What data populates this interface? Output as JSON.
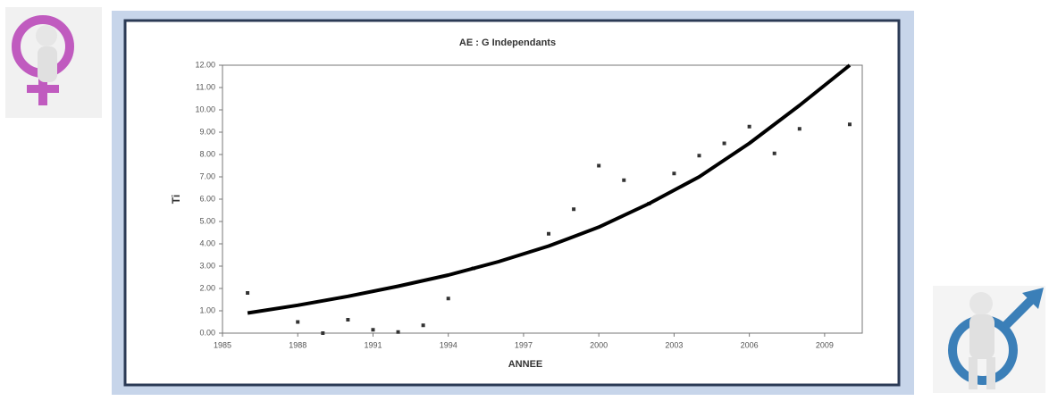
{
  "chart_data": {
    "type": "scatter",
    "title": "AE : G Independants",
    "xlabel": "ANNEE",
    "ylabel": "Ti",
    "xlim": [
      1985,
      2010.5
    ],
    "ylim": [
      0,
      12
    ],
    "xticks": [
      1985,
      1988,
      1991,
      1994,
      1997,
      2000,
      2003,
      2006,
      2009
    ],
    "yticks": [
      {
        "value": 0,
        "label": "0.00"
      },
      {
        "value": 1,
        "label": "1.00"
      },
      {
        "value": 2,
        "label": "2.00"
      },
      {
        "value": 3,
        "label": "3.00"
      },
      {
        "value": 4,
        "label": "4.00"
      },
      {
        "value": 5,
        "label": "5.00"
      },
      {
        "value": 6,
        "label": "6.00"
      },
      {
        "value": 7,
        "label": "7.00"
      },
      {
        "value": 8,
        "label": "8.00"
      },
      {
        "value": 9,
        "label": "9.00"
      },
      {
        "value": 10,
        "label": "10.00"
      },
      {
        "value": 11,
        "label": "11.00"
      },
      {
        "value": 12,
        "label": "12.00"
      }
    ],
    "series": [
      {
        "mode": "markers",
        "color": "#333333",
        "x": [
          1986,
          1988,
          1989,
          1990,
          1991,
          1992,
          1993,
          1994,
          1995,
          1998,
          1999,
          2000,
          2001,
          2002,
          2003,
          2004,
          2005,
          2006,
          2007,
          2008,
          2010
        ],
        "values": [
          1.8,
          0.5,
          0,
          0.6,
          0.15,
          0.05,
          0.35,
          1.55,
          2.9,
          4.45,
          5.55,
          7.5,
          6.85,
          5.8,
          7.15,
          7.95,
          8.5,
          9.25,
          8.05,
          9.15,
          9.35
        ]
      },
      {
        "mode": "line",
        "color": "#000000",
        "x": [
          1986,
          1988,
          1990,
          1992,
          1994,
          1996,
          1998,
          2000,
          2002,
          2004,
          2006,
          2008,
          2010
        ],
        "values": [
          0.9,
          1.25,
          1.65,
          2.1,
          2.6,
          3.2,
          3.9,
          4.75,
          5.8,
          7.0,
          8.5,
          10.2,
          12.0
        ]
      }
    ]
  }
}
